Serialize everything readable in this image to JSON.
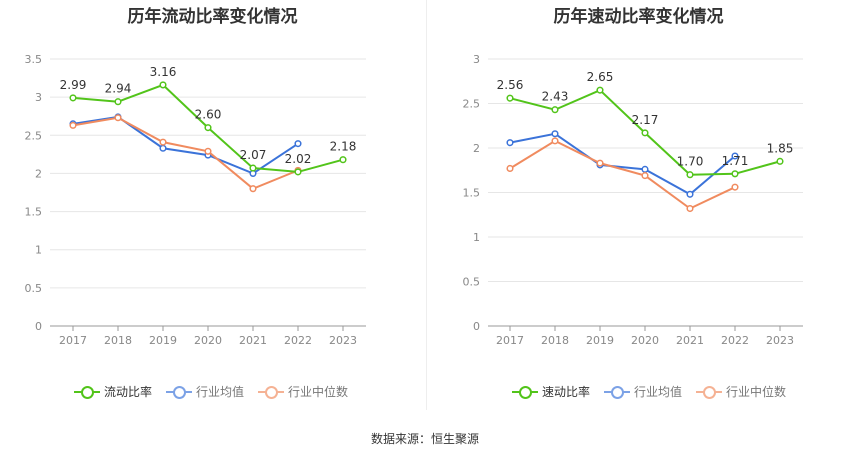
{
  "source_text": "数据来源：恒生聚源",
  "chart_data": [
    {
      "type": "line",
      "title": "历年流动比率变化情况",
      "categories": [
        "2017",
        "2018",
        "2019",
        "2020",
        "2021",
        "2022",
        "2023"
      ],
      "ylim": [
        0,
        3.5
      ],
      "yticks": [
        "0",
        "0.5",
        "1",
        "1.5",
        "2",
        "2.5",
        "3",
        "3.5"
      ],
      "grid": true,
      "legend_position": "bottom",
      "series": [
        {
          "name": "流动比率",
          "color": "#52c41a",
          "values": [
            2.99,
            2.94,
            3.16,
            2.6,
            2.07,
            2.02,
            2.18
          ],
          "labels": [
            "2.99",
            "2.94",
            "3.16",
            "2.60",
            "2.07",
            "2.02",
            "2.18"
          ]
        },
        {
          "name": "行业均值",
          "color": "#3b73d9",
          "values": [
            2.65,
            2.74,
            2.33,
            2.24,
            2.0,
            2.39,
            null
          ]
        },
        {
          "name": "行业中位数",
          "color": "#f08b5f",
          "values": [
            2.63,
            2.73,
            2.41,
            2.29,
            1.8,
            2.04,
            null
          ]
        }
      ]
    },
    {
      "type": "line",
      "title": "历年速动比率变化情况",
      "categories": [
        "2017",
        "2018",
        "2019",
        "2020",
        "2021",
        "2022",
        "2023"
      ],
      "ylim": [
        0,
        3
      ],
      "yticks": [
        "0",
        "0.5",
        "1",
        "1.5",
        "2",
        "2.5",
        "3"
      ],
      "grid": true,
      "legend_position": "bottom",
      "series": [
        {
          "name": "速动比率",
          "color": "#52c41a",
          "values": [
            2.56,
            2.43,
            2.65,
            2.17,
            1.7,
            1.71,
            1.85
          ],
          "labels": [
            "2.56",
            "2.43",
            "2.65",
            "2.17",
            "1.70",
            "1.71",
            "1.85"
          ]
        },
        {
          "name": "行业均值",
          "color": "#3b73d9",
          "values": [
            2.06,
            2.16,
            1.81,
            1.76,
            1.48,
            1.91,
            null
          ]
        },
        {
          "name": "行业中位数",
          "color": "#f08b5f",
          "values": [
            1.77,
            2.08,
            1.83,
            1.69,
            1.32,
            1.56,
            null
          ]
        }
      ]
    }
  ]
}
